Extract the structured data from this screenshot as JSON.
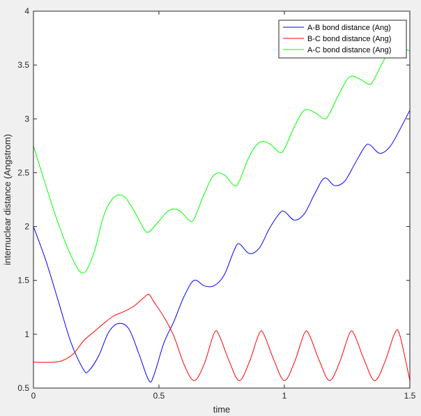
{
  "chart_data": {
    "type": "line",
    "title": "",
    "xlabel": "time",
    "ylabel": "internuclear distance (Angstrom)",
    "xlim": [
      0,
      1.5
    ],
    "ylim": [
      0.5,
      4
    ],
    "x_ticks": [
      "0",
      "0.5",
      "1",
      "1.5"
    ],
    "y_ticks": [
      "0.5",
      "1",
      "1.5",
      "2",
      "2.5",
      "3",
      "3.5",
      "4"
    ],
    "grid": false,
    "legend_position": "top-right",
    "series": [
      {
        "name": "A-B bond distance (Ang)",
        "color": "#0000ff",
        "points": [
          [
            0,
            2.0
          ],
          [
            0.05,
            1.68
          ],
          [
            0.1,
            1.3
          ],
          [
            0.15,
            0.92
          ],
          [
            0.2,
            0.67
          ],
          [
            0.22,
            0.66
          ],
          [
            0.26,
            0.8
          ],
          [
            0.3,
            1.02
          ],
          [
            0.34,
            1.1
          ],
          [
            0.38,
            1.05
          ],
          [
            0.42,
            0.82
          ],
          [
            0.46,
            0.57
          ],
          [
            0.48,
            0.62
          ],
          [
            0.52,
            0.92
          ],
          [
            0.56,
            1.12
          ],
          [
            0.6,
            1.35
          ],
          [
            0.64,
            1.5
          ],
          [
            0.68,
            1.45
          ],
          [
            0.72,
            1.45
          ],
          [
            0.76,
            1.55
          ],
          [
            0.8,
            1.78
          ],
          [
            0.82,
            1.84
          ],
          [
            0.86,
            1.75
          ],
          [
            0.9,
            1.8
          ],
          [
            0.94,
            1.98
          ],
          [
            0.98,
            2.12
          ],
          [
            1.0,
            2.14
          ],
          [
            1.04,
            2.06
          ],
          [
            1.08,
            2.12
          ],
          [
            1.12,
            2.3
          ],
          [
            1.16,
            2.45
          ],
          [
            1.2,
            2.38
          ],
          [
            1.24,
            2.42
          ],
          [
            1.28,
            2.58
          ],
          [
            1.32,
            2.74
          ],
          [
            1.34,
            2.76
          ],
          [
            1.38,
            2.68
          ],
          [
            1.42,
            2.74
          ],
          [
            1.46,
            2.9
          ],
          [
            1.5,
            3.08
          ]
        ]
      },
      {
        "name": "B-C bond distance (Ang)",
        "color": "#ff0000",
        "points": [
          [
            0,
            0.74
          ],
          [
            0.08,
            0.74
          ],
          [
            0.12,
            0.76
          ],
          [
            0.16,
            0.82
          ],
          [
            0.2,
            0.94
          ],
          [
            0.24,
            1.02
          ],
          [
            0.28,
            1.1
          ],
          [
            0.32,
            1.17
          ],
          [
            0.36,
            1.21
          ],
          [
            0.4,
            1.26
          ],
          [
            0.44,
            1.34
          ],
          [
            0.46,
            1.37
          ],
          [
            0.48,
            1.3
          ],
          [
            0.52,
            1.16
          ],
          [
            0.56,
            0.98
          ],
          [
            0.6,
            0.72
          ],
          [
            0.64,
            0.57
          ],
          [
            0.68,
            0.72
          ],
          [
            0.72,
            1.01
          ],
          [
            0.74,
            0.99
          ],
          [
            0.78,
            0.75
          ],
          [
            0.82,
            0.57
          ],
          [
            0.86,
            0.74
          ],
          [
            0.9,
            1.01
          ],
          [
            0.92,
            0.99
          ],
          [
            0.96,
            0.75
          ],
          [
            1.0,
            0.57
          ],
          [
            1.04,
            0.74
          ],
          [
            1.08,
            1.01
          ],
          [
            1.1,
            0.99
          ],
          [
            1.14,
            0.75
          ],
          [
            1.18,
            0.57
          ],
          [
            1.22,
            0.74
          ],
          [
            1.26,
            1.01
          ],
          [
            1.28,
            0.99
          ],
          [
            1.32,
            0.75
          ],
          [
            1.36,
            0.57
          ],
          [
            1.4,
            0.74
          ],
          [
            1.44,
            1.01
          ],
          [
            1.46,
            0.99
          ],
          [
            1.5,
            0.57
          ]
        ]
      },
      {
        "name": "A-C bond distance (Ang)",
        "color": "#00ff00",
        "points": [
          [
            0,
            2.75
          ],
          [
            0.04,
            2.45
          ],
          [
            0.1,
            2.02
          ],
          [
            0.16,
            1.68
          ],
          [
            0.2,
            1.57
          ],
          [
            0.24,
            1.75
          ],
          [
            0.28,
            2.1
          ],
          [
            0.32,
            2.27
          ],
          [
            0.36,
            2.28
          ],
          [
            0.4,
            2.15
          ],
          [
            0.44,
            1.98
          ],
          [
            0.46,
            1.95
          ],
          [
            0.5,
            2.05
          ],
          [
            0.54,
            2.15
          ],
          [
            0.58,
            2.15
          ],
          [
            0.62,
            2.06
          ],
          [
            0.64,
            2.07
          ],
          [
            0.68,
            2.3
          ],
          [
            0.72,
            2.48
          ],
          [
            0.76,
            2.48
          ],
          [
            0.8,
            2.38
          ],
          [
            0.82,
            2.42
          ],
          [
            0.86,
            2.65
          ],
          [
            0.9,
            2.78
          ],
          [
            0.94,
            2.77
          ],
          [
            0.98,
            2.69
          ],
          [
            1.0,
            2.72
          ],
          [
            1.04,
            2.93
          ],
          [
            1.08,
            3.08
          ],
          [
            1.12,
            3.06
          ],
          [
            1.16,
            3.0
          ],
          [
            1.18,
            3.05
          ],
          [
            1.22,
            3.24
          ],
          [
            1.26,
            3.39
          ],
          [
            1.3,
            3.37
          ],
          [
            1.34,
            3.32
          ],
          [
            1.36,
            3.38
          ],
          [
            1.4,
            3.56
          ],
          [
            1.44,
            3.7
          ],
          [
            1.48,
            3.65
          ],
          [
            1.5,
            3.63
          ]
        ]
      }
    ]
  }
}
